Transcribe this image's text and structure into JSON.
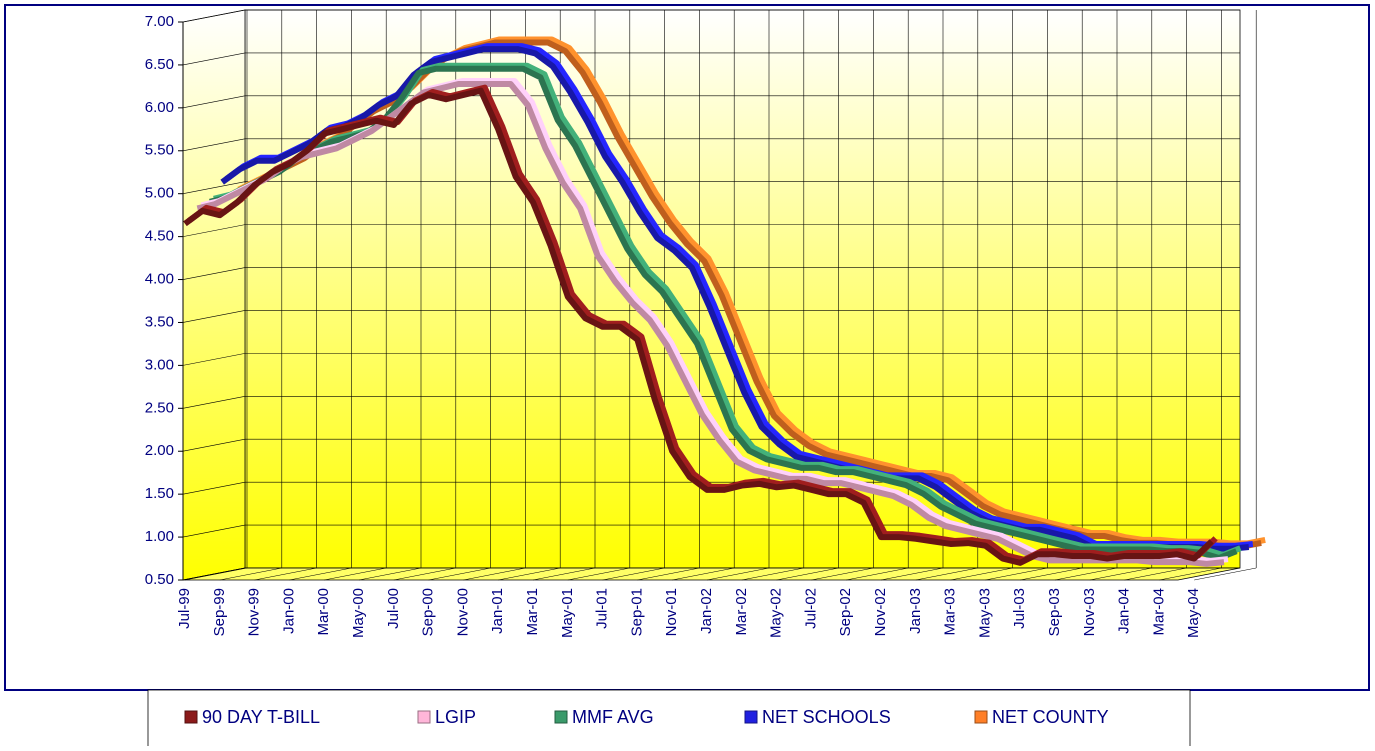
{
  "chart_data": {
    "type": "line",
    "categories": [
      "Jul-99",
      null,
      "Sep-99",
      null,
      "Nov-99",
      null,
      "Jan-00",
      null,
      "Mar-00",
      null,
      "May-00",
      null,
      "Jul-00",
      null,
      "Sep-00",
      null,
      "Nov-00",
      null,
      "Jan-01",
      null,
      "Mar-01",
      null,
      "May-01",
      null,
      "Jul-01",
      null,
      "Sep-01",
      null,
      "Nov-01",
      null,
      "Jan-02",
      null,
      "Mar-02",
      null,
      "May-02",
      null,
      "Jul-02",
      null,
      "Sep-02",
      null,
      "Nov-02",
      null,
      "Jan-03",
      null,
      "Mar-03",
      null,
      "May-03",
      null,
      "Jul-03",
      null,
      "Sep-03",
      null,
      "Nov-03",
      null,
      "Jan-04",
      null,
      "Mar-04",
      null,
      "May-04",
      null
    ],
    "series": [
      {
        "name": "90 DAY T-BILL",
        "color": "#8b1a1a",
        "values": [
          4.65,
          4.8,
          4.75,
          4.9,
          5.1,
          5.25,
          5.35,
          5.5,
          5.7,
          5.75,
          5.8,
          5.85,
          5.8,
          6.05,
          6.15,
          6.1,
          6.15,
          6.2,
          5.75,
          5.2,
          4.9,
          4.4,
          3.8,
          3.55,
          3.45,
          3.45,
          3.3,
          2.6,
          2.0,
          1.7,
          1.55,
          1.55,
          1.6,
          1.62,
          1.58,
          1.6,
          1.55,
          1.5,
          1.5,
          1.4,
          1.0,
          1.0,
          0.98,
          0.95,
          0.92,
          0.93,
          0.9,
          0.75,
          0.7,
          0.8,
          0.8,
          0.78,
          0.78,
          0.75,
          0.78,
          0.78,
          0.78,
          0.8,
          0.75,
          0.95
        ]
      },
      {
        "name": "LGIP",
        "color": "#ffb6d9",
        "values": [
          4.8,
          4.85,
          4.95,
          5.05,
          5.15,
          5.3,
          5.4,
          5.45,
          5.5,
          5.6,
          5.7,
          5.85,
          6.0,
          6.15,
          6.2,
          6.25,
          6.25,
          6.25,
          6.25,
          6.0,
          5.5,
          5.1,
          4.8,
          4.25,
          3.95,
          3.7,
          3.5,
          3.2,
          2.8,
          2.4,
          2.1,
          1.85,
          1.75,
          1.7,
          1.65,
          1.65,
          1.6,
          1.6,
          1.55,
          1.5,
          1.45,
          1.35,
          1.2,
          1.1,
          1.05,
          1.0,
          0.95,
          0.85,
          0.75,
          0.7,
          0.7,
          0.7,
          0.7,
          0.7,
          0.7,
          0.68,
          0.68,
          0.68,
          0.66,
          0.68
        ]
      },
      {
        "name": "MMF AVG",
        "color": "#3a9a6a",
        "values": [
          4.85,
          4.9,
          5.0,
          5.1,
          5.2,
          5.35,
          5.45,
          5.55,
          5.6,
          5.65,
          5.8,
          6.05,
          6.35,
          6.4,
          6.4,
          6.4,
          6.4,
          6.4,
          6.4,
          6.3,
          5.8,
          5.5,
          5.1,
          4.7,
          4.3,
          4.0,
          3.8,
          3.5,
          3.2,
          2.7,
          2.2,
          1.95,
          1.85,
          1.8,
          1.75,
          1.75,
          1.7,
          1.7,
          1.65,
          1.6,
          1.55,
          1.45,
          1.3,
          1.2,
          1.1,
          1.05,
          1.0,
          0.95,
          0.9,
          0.85,
          0.8,
          0.8,
          0.8,
          0.8,
          0.8,
          0.78,
          0.78,
          0.76,
          0.7,
          0.78
        ]
      },
      {
        "name": "NET SCHOOLS",
        "color": "#2020e0",
        "values": [
          5.05,
          5.2,
          5.3,
          5.3,
          5.4,
          5.5,
          5.65,
          5.7,
          5.8,
          5.95,
          6.05,
          6.3,
          6.45,
          6.5,
          6.55,
          6.6,
          6.6,
          6.6,
          6.55,
          6.4,
          6.1,
          5.75,
          5.35,
          5.05,
          4.7,
          4.4,
          4.25,
          4.05,
          3.6,
          3.1,
          2.6,
          2.2,
          2.0,
          1.85,
          1.8,
          1.75,
          1.7,
          1.65,
          1.6,
          1.6,
          1.6,
          1.5,
          1.35,
          1.2,
          1.1,
          1.05,
          1.0,
          1.0,
          0.95,
          0.9,
          0.8,
          0.8,
          0.8,
          0.8,
          0.8,
          0.8,
          0.8,
          0.78,
          0.78,
          0.8
        ]
      },
      {
        "name": "NET COUNTY",
        "color": "#ff7f27",
        "values": [
          4.9,
          5.0,
          5.1,
          5.2,
          5.3,
          5.45,
          5.55,
          5.7,
          5.85,
          5.95,
          6.1,
          6.3,
          6.45,
          6.55,
          6.6,
          6.65,
          6.65,
          6.65,
          6.65,
          6.55,
          6.3,
          5.95,
          5.55,
          5.2,
          4.85,
          4.55,
          4.3,
          4.1,
          3.7,
          3.2,
          2.7,
          2.3,
          2.1,
          1.95,
          1.85,
          1.8,
          1.75,
          1.7,
          1.65,
          1.6,
          1.6,
          1.55,
          1.4,
          1.25,
          1.15,
          1.1,
          1.05,
          1.0,
          0.95,
          0.9,
          0.9,
          0.85,
          0.82,
          0.82,
          0.8,
          0.8,
          0.8,
          0.78,
          0.78,
          0.82
        ]
      }
    ],
    "ylim": [
      0.5,
      7.0
    ],
    "yticks": [
      {
        "value": 0.5,
        "label": "0.50"
      },
      {
        "value": 1.0,
        "label": "1.00"
      },
      {
        "value": 1.5,
        "label": "1.50"
      },
      {
        "value": 2.0,
        "label": "2.00"
      },
      {
        "value": 2.5,
        "label": "2.50"
      },
      {
        "value": 3.0,
        "label": "3.00"
      },
      {
        "value": 3.5,
        "label": "3.50"
      },
      {
        "value": 4.0,
        "label": "4.00"
      },
      {
        "value": 4.5,
        "label": "4.50"
      },
      {
        "value": 5.0,
        "label": "5.00"
      },
      {
        "value": 5.5,
        "label": "5.50"
      },
      {
        "value": 6.0,
        "label": "6.00"
      },
      {
        "value": 6.5,
        "label": "6.50"
      },
      {
        "value": 7.0,
        "label": "7.00"
      }
    ],
    "grid": true,
    "legend": "bottom"
  }
}
